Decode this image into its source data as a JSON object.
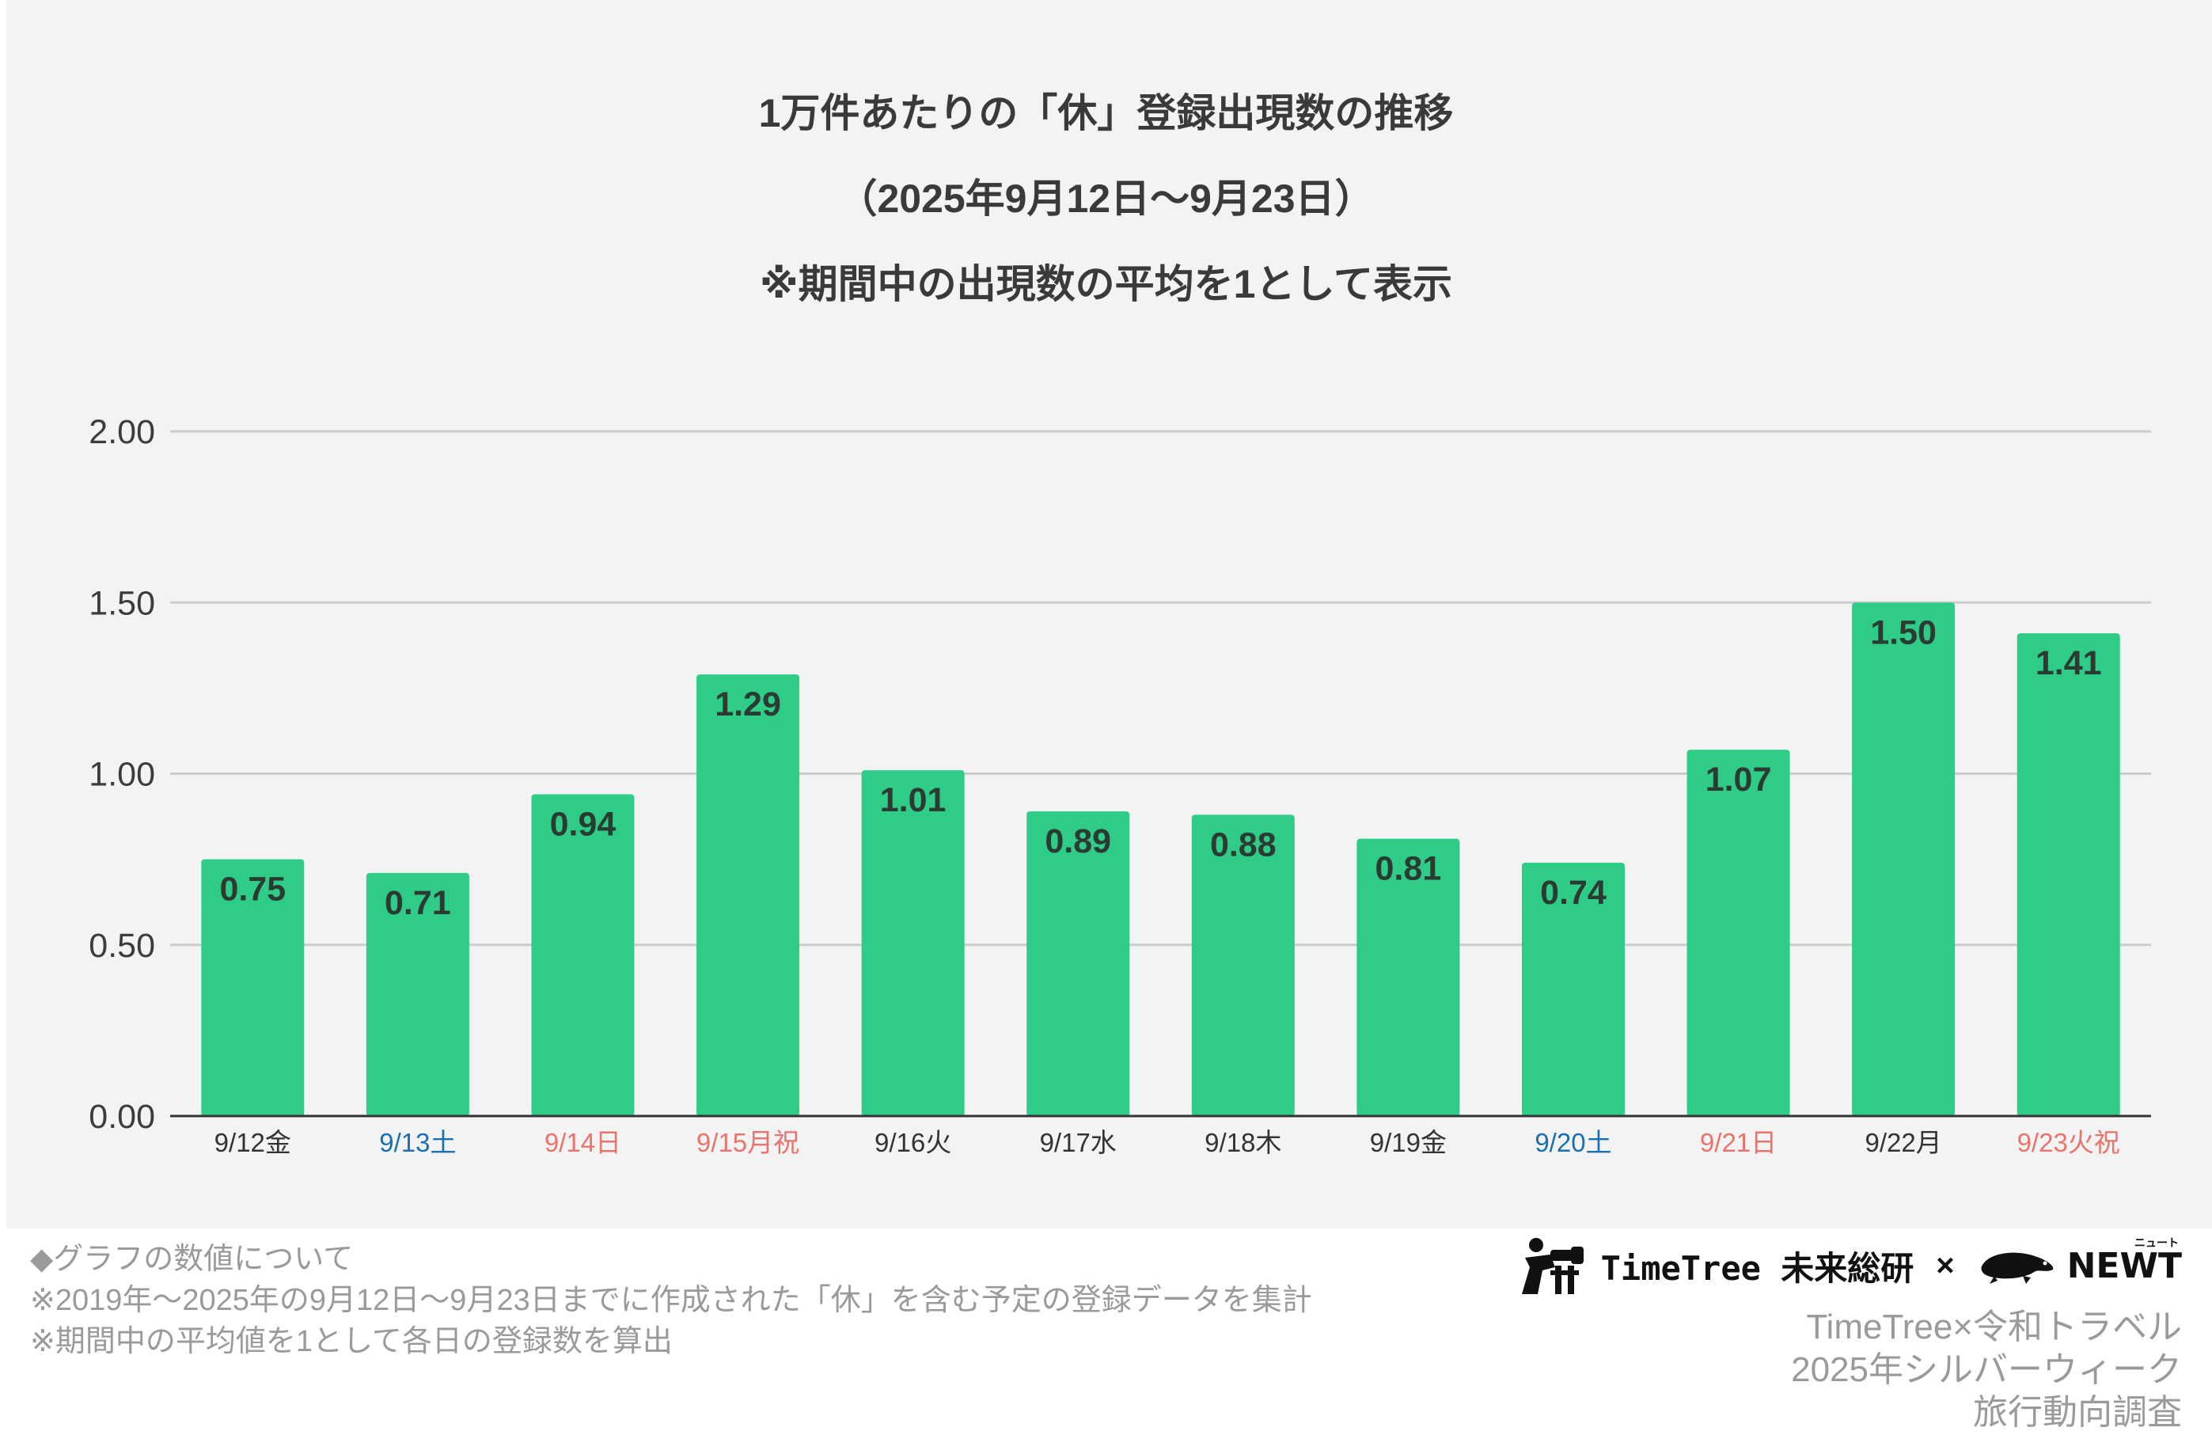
{
  "title": {
    "lines": [
      "1万件あたりの「休」登録出現数の推移",
      "（2025年9月12日〜9月23日）",
      "※期間中の出現数の平均を1として表示"
    ]
  },
  "colors": {
    "bar": "#2ecc87",
    "panel_bg": "#f3f3f3",
    "weekday": "#333333",
    "saturday": "#1a6fb5",
    "holiday": "#e8746b",
    "gridline": "#cccccc",
    "axis": "#333333"
  },
  "chart_data": {
    "type": "bar",
    "title": "1万件あたりの「休」登録出現数の推移（2025年9月12日〜9月23日）※期間中の出現数の平均を1として表示",
    "categories": [
      "9/12金",
      "9/13土",
      "9/14日",
      "9/15月祝",
      "9/16火",
      "9/17水",
      "9/18木",
      "9/19金",
      "9/20土",
      "9/21日",
      "9/22月",
      "9/23火祝"
    ],
    "category_kind": [
      "weekday",
      "saturday",
      "holiday",
      "holiday",
      "weekday",
      "weekday",
      "weekday",
      "weekday",
      "saturday",
      "holiday",
      "weekday",
      "holiday"
    ],
    "values": [
      0.75,
      0.71,
      0.94,
      1.29,
      1.01,
      0.89,
      0.88,
      0.81,
      0.74,
      1.07,
      1.5,
      1.41
    ],
    "data_labels": [
      "0.75",
      "0.71",
      "0.94",
      "1.29",
      "1.01",
      "0.89",
      "0.88",
      "0.81",
      "0.74",
      "1.07",
      "1.50",
      "1.41"
    ],
    "y_ticks": [
      "0.00",
      "0.50",
      "1.00",
      "1.50",
      "2.00"
    ],
    "ylim": [
      0,
      2
    ],
    "xlabel": "",
    "ylabel": "",
    "grid": true,
    "legend": "none"
  },
  "footnote": {
    "lines": [
      "◆グラフの数値について",
      "※2019年〜2025年の9月12日〜9月23日までに作成された「休」を含む予定の登録データを集計",
      "※期間中の平均値を1として各日の登録数を算出"
    ]
  },
  "brand": {
    "logo1_text": "TimeTree 未来総研",
    "separator": "×",
    "logo2_text": "NEWT",
    "logo2_ruby": "ニュート",
    "logo1_icon": "binoculars-person-icon",
    "logo2_icon": "newt-icon",
    "lines": [
      "TimeTree×令和トラベル",
      "2025年シルバーウィーク",
      "旅行動向調査"
    ]
  }
}
